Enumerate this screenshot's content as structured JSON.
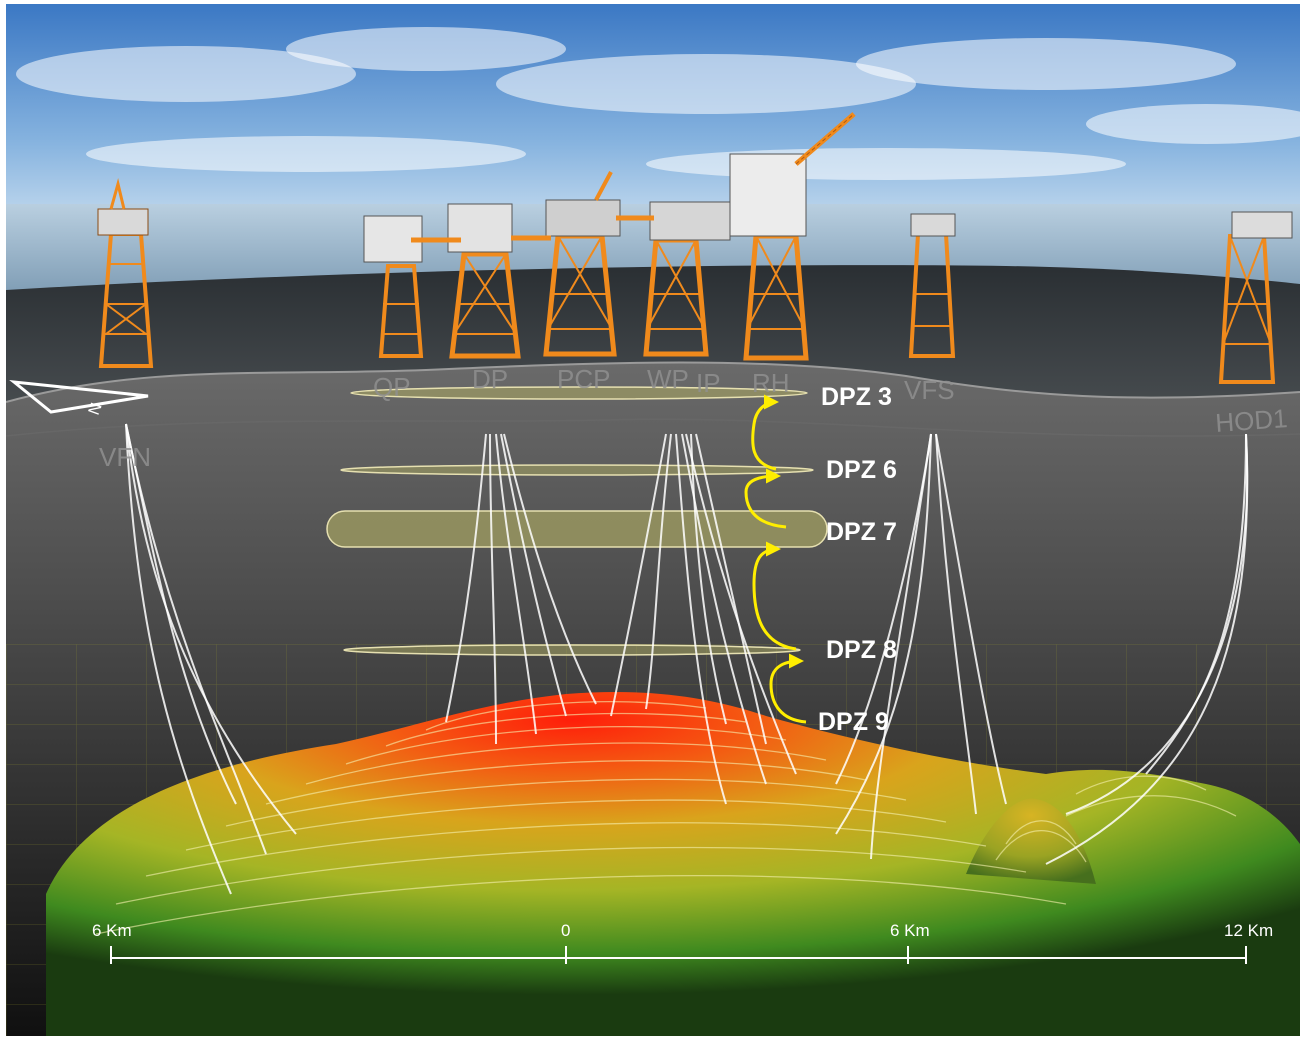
{
  "platforms": [
    {
      "id": "vfn",
      "label": "VFN"
    },
    {
      "id": "qp",
      "label": "QP"
    },
    {
      "id": "dp",
      "label": "DP"
    },
    {
      "id": "pcp",
      "label": "PCP"
    },
    {
      "id": "wp",
      "label": "WP"
    },
    {
      "id": "ip",
      "label": "IP"
    },
    {
      "id": "rh",
      "label": "RH"
    },
    {
      "id": "vfs",
      "label": "VFS"
    },
    {
      "id": "hod1",
      "label": "HOD1"
    }
  ],
  "zones": [
    {
      "id": "dpz3",
      "label": "DPZ 3"
    },
    {
      "id": "dpz6",
      "label": "DPZ 6"
    },
    {
      "id": "dpz7",
      "label": "DPZ 7"
    },
    {
      "id": "dpz8",
      "label": "DPZ 8"
    },
    {
      "id": "dpz9",
      "label": "DPZ 9"
    }
  ],
  "scale_bar": {
    "ticks": [
      {
        "label": "6 Km"
      },
      {
        "label": "0"
      },
      {
        "label": "6 Km"
      },
      {
        "label": "12 Km"
      }
    ]
  },
  "compass": {
    "label": "N"
  },
  "colors": {
    "sky_top": "#2e6fc1",
    "sea": "#9fb9cd",
    "rock": "#3c3c3c",
    "reservoir_crest": "#ff2a0a",
    "reservoir_flank": "#c7b81e",
    "reservoir_edge": "#3f8f20",
    "zone_fill": "#a6a463",
    "arrow": "#ffee00",
    "jacket": "#f08a1c",
    "well": "#ffffff"
  }
}
